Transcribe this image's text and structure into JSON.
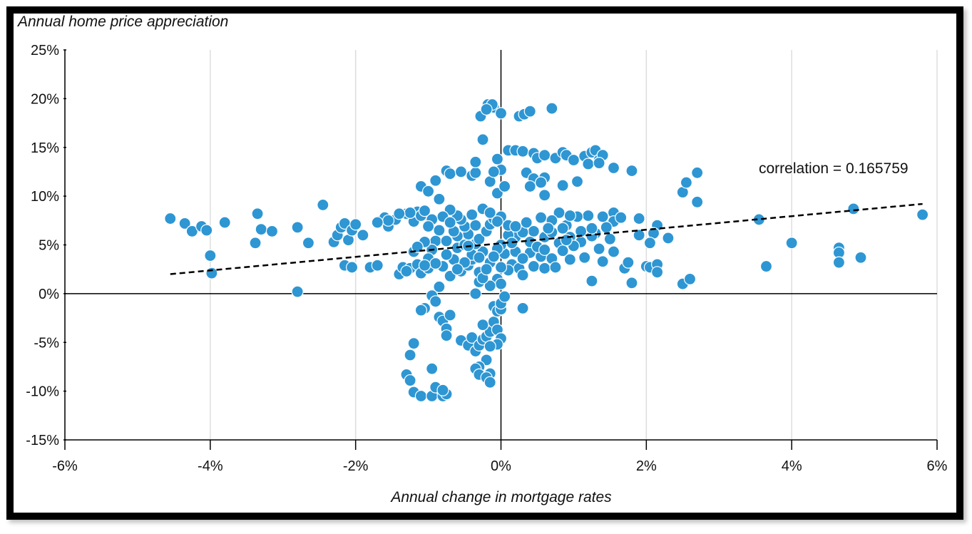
{
  "chart_data": {
    "type": "scatter",
    "title": "",
    "ylabel": "Annual home price appreciation",
    "xlabel": "Annual change in mortgage rates",
    "xlim": [
      -6,
      6
    ],
    "ylim": [
      -15,
      25
    ],
    "x_ticks": [
      -6,
      -4,
      -2,
      0,
      2,
      4,
      6
    ],
    "y_ticks": [
      -15,
      -10,
      -5,
      0,
      5,
      10,
      15,
      20,
      25
    ],
    "x_tick_labels": [
      "-6%",
      "-4%",
      "-2%",
      "0%",
      "2%",
      "4%",
      "6%"
    ],
    "y_tick_labels": [
      "-15%",
      "-10%",
      "-5%",
      "0%",
      "5%",
      "10%",
      "15%",
      "20%",
      "25%"
    ],
    "grid": "vertical",
    "point_color": "#2e96d3",
    "point_edge_color": "#ffffff",
    "trendline": {
      "style": "dashed",
      "color": "#000000",
      "x": [
        -4.55,
        5.8
      ],
      "y": [
        2.0,
        9.2
      ]
    },
    "annotation": "correlation = 0.165759",
    "points": [
      [
        -4.55,
        7.7
      ],
      [
        -4.35,
        7.2
      ],
      [
        -4.25,
        6.4
      ],
      [
        -4.12,
        6.9
      ],
      [
        -4.05,
        6.5
      ],
      [
        -4.0,
        3.9
      ],
      [
        -3.98,
        2.1
      ],
      [
        -3.8,
        7.3
      ],
      [
        -3.35,
        8.2
      ],
      [
        -3.38,
        5.2
      ],
      [
        -3.3,
        6.6
      ],
      [
        -3.15,
        6.4
      ],
      [
        -2.8,
        6.8
      ],
      [
        -2.8,
        0.2
      ],
      [
        -2.65,
        5.2
      ],
      [
        -2.45,
        9.1
      ],
      [
        -2.3,
        5.3
      ],
      [
        -2.25,
        6.0
      ],
      [
        -2.2,
        6.8
      ],
      [
        -2.15,
        7.2
      ],
      [
        -2.1,
        5.5
      ],
      [
        -2.05,
        6.5
      ],
      [
        -2.0,
        7.1
      ],
      [
        -1.9,
        6.0
      ],
      [
        -2.15,
        2.9
      ],
      [
        -2.05,
        2.7
      ],
      [
        -1.8,
        2.7
      ],
      [
        -1.7,
        2.9
      ],
      [
        -1.68,
        7.4
      ],
      [
        -1.6,
        7.8
      ],
      [
        -1.55,
        6.9
      ],
      [
        -1.45,
        7.6
      ],
      [
        -1.4,
        2.0
      ],
      [
        -1.35,
        2.7
      ],
      [
        -1.3,
        8.2
      ],
      [
        -1.25,
        2.6
      ],
      [
        -1.2,
        7.4
      ],
      [
        -1.15,
        8.4
      ],
      [
        -1.1,
        8.0
      ],
      [
        -1.05,
        8.5
      ],
      [
        -1.2,
        4.3
      ],
      [
        -1.15,
        3.0
      ],
      [
        -1.1,
        2.1
      ],
      [
        -1.0,
        2.6
      ],
      [
        -1.1,
        11.0
      ],
      [
        -0.9,
        11.6
      ],
      [
        -1.0,
        10.5
      ],
      [
        -0.85,
        9.7
      ],
      [
        -0.75,
        12.6
      ],
      [
        -0.7,
        12.3
      ],
      [
        -0.55,
        12.5
      ],
      [
        -0.4,
        12.1
      ],
      [
        -0.35,
        12.4
      ],
      [
        -0.35,
        13.5
      ],
      [
        -0.25,
        15.8
      ],
      [
        -0.28,
        18.2
      ],
      [
        -0.18,
        19.4
      ],
      [
        -0.1,
        19.1
      ],
      [
        -0.12,
        19.4
      ],
      [
        -0.2,
        18.9
      ],
      [
        0.0,
        18.5
      ],
      [
        0.25,
        18.2
      ],
      [
        0.32,
        18.4
      ],
      [
        0.4,
        18.7
      ],
      [
        0.7,
        19.0
      ],
      [
        0.1,
        14.7
      ],
      [
        0.2,
        14.7
      ],
      [
        0.3,
        14.6
      ],
      [
        0.45,
        14.4
      ],
      [
        0.5,
        13.9
      ],
      [
        0.6,
        14.2
      ],
      [
        0.75,
        13.9
      ],
      [
        0.85,
        14.5
      ],
      [
        0.9,
        14.2
      ],
      [
        1.0,
        13.7
      ],
      [
        1.15,
        14.1
      ],
      [
        1.25,
        14.5
      ],
      [
        1.3,
        14.7
      ],
      [
        1.35,
        13.7
      ],
      [
        1.4,
        14.2
      ],
      [
        1.2,
        13.3
      ],
      [
        1.35,
        13.4
      ],
      [
        1.55,
        12.9
      ],
      [
        1.8,
        12.6
      ],
      [
        0.35,
        12.4
      ],
      [
        0.45,
        11.8
      ],
      [
        0.6,
        11.9
      ],
      [
        0.85,
        11.1
      ],
      [
        1.05,
        11.5
      ],
      [
        0.4,
        11.0
      ],
      [
        0.55,
        11.4
      ],
      [
        0.6,
        10.1
      ],
      [
        -0.15,
        11.5
      ],
      [
        -0.05,
        10.3
      ],
      [
        0.05,
        11.0
      ],
      [
        0.0,
        12.7
      ],
      [
        -0.1,
        12.5
      ],
      [
        -0.05,
        13.8
      ],
      [
        2.5,
        10.4
      ],
      [
        2.55,
        11.4
      ],
      [
        2.7,
        12.4
      ],
      [
        2.7,
        9.4
      ],
      [
        3.55,
        7.6
      ],
      [
        4.85,
        8.7
      ],
      [
        5.8,
        8.1
      ],
      [
        3.65,
        2.8
      ],
      [
        4.0,
        5.2
      ],
      [
        4.65,
        4.7
      ],
      [
        4.65,
        4.2
      ],
      [
        4.65,
        3.2
      ],
      [
        4.95,
        3.7
      ],
      [
        2.3,
        5.7
      ],
      [
        2.15,
        7.0
      ],
      [
        2.1,
        6.2
      ],
      [
        1.9,
        7.7
      ],
      [
        1.9,
        6.0
      ],
      [
        2.05,
        5.2
      ],
      [
        2.0,
        2.8
      ],
      [
        2.05,
        2.7
      ],
      [
        2.15,
        3.0
      ],
      [
        2.15,
        2.2
      ],
      [
        2.5,
        1.0
      ],
      [
        2.6,
        1.5
      ],
      [
        1.7,
        2.6
      ],
      [
        1.75,
        3.2
      ],
      [
        1.8,
        1.1
      ],
      [
        1.25,
        1.3
      ],
      [
        1.55,
        8.3
      ],
      [
        1.55,
        7.4
      ],
      [
        1.45,
        6.8
      ],
      [
        1.5,
        5.6
      ],
      [
        1.55,
        4.3
      ],
      [
        1.4,
        3.3
      ],
      [
        1.35,
        4.6
      ],
      [
        1.3,
        6.2
      ],
      [
        1.2,
        8.0
      ],
      [
        1.05,
        7.9
      ],
      [
        0.9,
        7.0
      ],
      [
        0.8,
        8.3
      ],
      [
        0.7,
        7.5
      ],
      [
        0.55,
        7.8
      ],
      [
        0.45,
        6.4
      ],
      [
        0.6,
        5.8
      ],
      [
        0.7,
        6.3
      ],
      [
        0.8,
        5.2
      ],
      [
        0.95,
        5.8
      ],
      [
        1.1,
        5.3
      ],
      [
        1.25,
        5.9
      ],
      [
        0.4,
        4.2
      ],
      [
        0.55,
        3.8
      ],
      [
        0.7,
        3.6
      ],
      [
        0.85,
        4.4
      ],
      [
        1.0,
        4.9
      ],
      [
        1.15,
        3.7
      ],
      [
        0.45,
        2.8
      ],
      [
        0.6,
        2.6
      ],
      [
        0.75,
        2.7
      ],
      [
        0.95,
        3.5
      ],
      [
        0.15,
        3.0
      ],
      [
        0.25,
        2.6
      ],
      [
        0.3,
        1.9
      ],
      [
        0.2,
        5.8
      ],
      [
        0.3,
        6.3
      ],
      [
        0.1,
        6.0
      ],
      [
        0.05,
        4.1
      ],
      [
        0.0,
        5.0
      ],
      [
        0.1,
        2.4
      ],
      [
        0.0,
        2.7
      ],
      [
        -0.05,
        1.5
      ],
      [
        0.0,
        1.0
      ],
      [
        -0.15,
        0.8
      ],
      [
        -0.3,
        1.2
      ],
      [
        -0.15,
        3.2
      ],
      [
        -0.25,
        4.3
      ],
      [
        -0.35,
        5.1
      ],
      [
        -0.45,
        6.1
      ],
      [
        -0.5,
        6.9
      ],
      [
        -0.55,
        7.6
      ],
      [
        -0.6,
        8.0
      ],
      [
        -0.7,
        8.6
      ],
      [
        -0.8,
        7.9
      ],
      [
        -0.85,
        6.5
      ],
      [
        -0.9,
        5.4
      ],
      [
        -0.95,
        4.5
      ],
      [
        -1.0,
        3.6
      ],
      [
        -0.8,
        2.8
      ],
      [
        -0.7,
        1.8
      ],
      [
        -0.55,
        2.3
      ],
      [
        -0.45,
        2.9
      ],
      [
        -0.4,
        3.5
      ],
      [
        -0.6,
        4.7
      ],
      [
        -0.75,
        5.4
      ],
      [
        -0.3,
        5.6
      ],
      [
        -0.2,
        6.4
      ],
      [
        -0.15,
        7.1
      ],
      [
        -0.1,
        7.7
      ],
      [
        0.0,
        7.9
      ],
      [
        -0.35,
        7.0
      ],
      [
        -0.85,
        0.7
      ],
      [
        -0.95,
        -0.2
      ],
      [
        -0.9,
        -0.8
      ],
      [
        -1.05,
        -1.5
      ],
      [
        -1.1,
        -1.7
      ],
      [
        -0.85,
        -2.4
      ],
      [
        -0.8,
        -2.8
      ],
      [
        -0.75,
        -3.6
      ],
      [
        -0.7,
        -2.2
      ],
      [
        -0.75,
        -4.3
      ],
      [
        -0.55,
        -4.8
      ],
      [
        -0.45,
        -5.3
      ],
      [
        -0.4,
        -4.5
      ],
      [
        -0.35,
        -5.9
      ],
      [
        -0.3,
        -5.3
      ],
      [
        -0.25,
        -4.7
      ],
      [
        -0.2,
        -4.4
      ],
      [
        -0.15,
        -3.9
      ],
      [
        -0.25,
        -3.2
      ],
      [
        -0.1,
        -2.9
      ],
      [
        -0.05,
        -3.7
      ],
      [
        0.0,
        -4.6
      ],
      [
        -0.05,
        -5.2
      ],
      [
        -0.15,
        -5.4
      ],
      [
        -0.2,
        -6.8
      ],
      [
        -0.3,
        -7.5
      ],
      [
        -0.35,
        -7.7
      ],
      [
        -0.15,
        -8.2
      ],
      [
        -0.3,
        -8.3
      ],
      [
        -0.2,
        -8.6
      ],
      [
        -0.15,
        -9.1
      ],
      [
        -0.1,
        -1.3
      ],
      [
        -0.05,
        -1.8
      ],
      [
        0.0,
        -1.6
      ],
      [
        0.0,
        -1.0
      ],
      [
        0.05,
        -0.3
      ],
      [
        0.3,
        -1.5
      ],
      [
        -1.2,
        -5.1
      ],
      [
        -1.25,
        -6.3
      ],
      [
        -1.3,
        -8.3
      ],
      [
        -1.25,
        -8.9
      ],
      [
        -1.2,
        -10.1
      ],
      [
        -1.1,
        -10.5
      ],
      [
        -0.95,
        -10.5
      ],
      [
        -0.9,
        -9.6
      ],
      [
        -0.8,
        -10.5
      ],
      [
        -0.75,
        -10.3
      ],
      [
        -0.8,
        -9.9
      ],
      [
        -0.95,
        -7.7
      ],
      [
        -0.35,
        0.0
      ],
      [
        -0.4,
        4.0
      ],
      [
        -0.5,
        3.2
      ],
      [
        -0.65,
        3.5
      ],
      [
        -0.6,
        2.5
      ],
      [
        -0.3,
        2.2
      ],
      [
        -0.25,
        1.6
      ],
      [
        0.4,
        5.3
      ],
      [
        0.5,
        4.8
      ],
      [
        0.2,
        4.3
      ],
      [
        0.3,
        3.6
      ],
      [
        0.6,
        4.5
      ],
      [
        1.1,
        6.4
      ],
      [
        0.85,
        6.7
      ],
      [
        0.95,
        8.0
      ],
      [
        1.25,
        6.7
      ],
      [
        1.4,
        7.9
      ],
      [
        1.65,
        7.8
      ],
      [
        0.65,
        6.7
      ],
      [
        0.9,
        5.5
      ],
      [
        -0.6,
        5.9
      ],
      [
        -0.65,
        6.4
      ],
      [
        -0.5,
        5.0
      ],
      [
        -1.05,
        5.3
      ],
      [
        -1.15,
        4.8
      ],
      [
        -1.25,
        8.3
      ],
      [
        -1.4,
        8.2
      ],
      [
        -1.55,
        7.5
      ],
      [
        -1.7,
        7.3
      ],
      [
        -0.95,
        7.6
      ],
      [
        -1.0,
        6.9
      ],
      [
        -0.7,
        7.3
      ],
      [
        -0.4,
        8.1
      ],
      [
        -0.25,
        8.7
      ],
      [
        -0.15,
        8.3
      ],
      [
        -0.05,
        7.4
      ],
      [
        0.1,
        7.0
      ],
      [
        0.2,
        6.9
      ],
      [
        0.35,
        7.3
      ],
      [
        0.15,
        5.2
      ],
      [
        -0.05,
        4.6
      ],
      [
        -0.1,
        3.8
      ],
      [
        -0.2,
        2.5
      ],
      [
        -0.3,
        3.7
      ],
      [
        -0.45,
        4.9
      ],
      [
        -0.75,
        4.0
      ],
      [
        -0.9,
        3.1
      ],
      [
        -1.05,
        2.9
      ],
      [
        -1.3,
        2.3
      ]
    ]
  }
}
